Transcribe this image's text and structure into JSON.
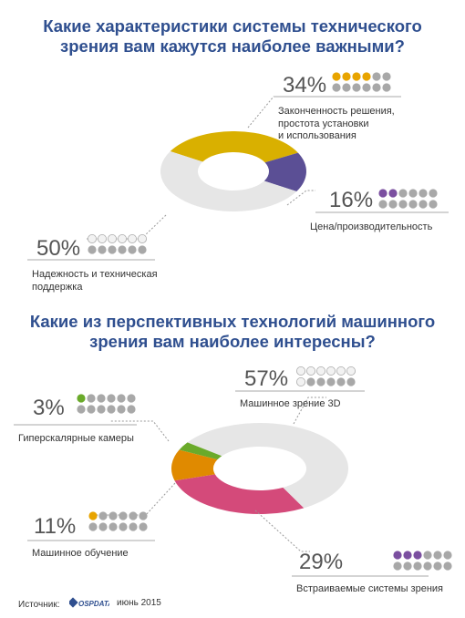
{
  "chart1": {
    "title_line1": "Какие характеристики системы технического",
    "title_line2": "зрения вам кажутся наиболее важными?",
    "colors": [
      "#d9b000",
      "#5b4f95",
      "#e6e6e6"
    ],
    "dot_colors": [
      "#e8a400",
      "#7b4fa0",
      "#e8e8e8"
    ]
  },
  "chart2": {
    "title_line1": "Какие из перспективных технологий машинного",
    "title_line2": "зрения вам наиболее интересны?",
    "colors": [
      "#e6e6e6",
      "#d44a7a",
      "#e08a00",
      "#6aaa2a"
    ],
    "dot_colors": [
      "#e8e8e8",
      "#7b4fa0",
      "#e8a400",
      "#6aaa2a"
    ]
  },
  "chart_data": [
    {
      "type": "pie",
      "title": "Какие характеристики системы технического зрения вам кажутся наиболее важными?",
      "categories": [
        "Законченность решения, простота установки и использования",
        "Цена/производительность",
        "Надежность и техническая поддержка"
      ],
      "values": [
        34,
        16,
        50
      ],
      "value_labels": [
        "34%",
        "16%",
        "50%"
      ],
      "label_lines": [
        [
          "Законченность решения,",
          "простота  установки",
          "и использования"
        ],
        [
          "Цена/производительность"
        ],
        [
          "Надежность и техническая",
          "поддержка"
        ]
      ]
    },
    {
      "type": "pie",
      "title": "Какие из перспективных технологий машинного зрения вам наиболее интересны?",
      "categories": [
        "Машинное зрение 3D",
        "Встраиваемые системы зрения",
        "Машинное обучение",
        "Гиперскалярные камеры"
      ],
      "values": [
        57,
        29,
        11,
        3
      ],
      "value_labels": [
        "57%",
        "29%",
        "11%",
        "3%"
      ],
      "label_lines": [
        [
          "Машинное зрение 3D"
        ],
        [
          "Встраиваемые системы зрения"
        ],
        [
          "Машинное обучение"
        ],
        [
          "Гиперскалярные камеры"
        ]
      ]
    }
  ],
  "source": {
    "label": "Источник:",
    "logo_text": "OSPDATA",
    "date": "июнь 2015"
  }
}
